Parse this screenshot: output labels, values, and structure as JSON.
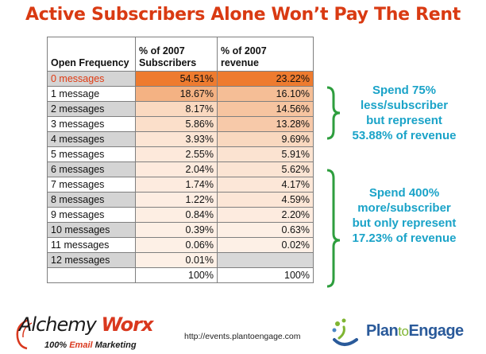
{
  "title": "Active Subscribers Alone Won’t Pay The Rent",
  "chart_data": {
    "type": "table",
    "title": "Active Subscribers Alone Won’t Pay The Rent",
    "columns": [
      "Open Frequency",
      "% of 2007 Subscribers",
      "% of 2007 revenue"
    ],
    "header": {
      "c0_line1": "",
      "c0_line2": "Open Frequency",
      "c1_line1": "% of 2007",
      "c1_line2": "Subscribers",
      "c2_line1": "% of 2007",
      "c2_line2": "revenue"
    },
    "rows": [
      {
        "label": "0 messages",
        "subscribers": "54.51%",
        "revenue": "23.22%",
        "sub_color": "#ee7b2f",
        "rev_color": "#ee7b2f"
      },
      {
        "label": "1 message",
        "subscribers": "18.67%",
        "revenue": "16.10%",
        "sub_color": "#f4b283",
        "rev_color": "#f5be96"
      },
      {
        "label": "2 messages",
        "subscribers": "8.17%",
        "revenue": "14.56%",
        "sub_color": "#fad9c0",
        "rev_color": "#f6c4a0"
      },
      {
        "label": "3 messages",
        "subscribers": "5.86%",
        "revenue": "13.28%",
        "sub_color": "#fbdfca",
        "rev_color": "#f7c9a9"
      },
      {
        "label": "4 messages",
        "subscribers": "3.93%",
        "revenue": "9.69%",
        "sub_color": "#fce5d4",
        "rev_color": "#f9d8bf"
      },
      {
        "label": "5 messages",
        "subscribers": "2.55%",
        "revenue": "5.91%",
        "sub_color": "#fde9db",
        "rev_color": "#fbe3d1"
      },
      {
        "label": "6 messages",
        "subscribers": "2.04%",
        "revenue": "5.62%",
        "sub_color": "#fdeadd",
        "rev_color": "#fbe4d3"
      },
      {
        "label": "7 messages",
        "subscribers": "1.74%",
        "revenue": "4.17%",
        "sub_color": "#fdebdf",
        "rev_color": "#fce7d8"
      },
      {
        "label": "8 messages",
        "subscribers": "1.22%",
        "revenue": "4.59%",
        "sub_color": "#fdede2",
        "rev_color": "#fce6d6"
      },
      {
        "label": "9 messages",
        "subscribers": "0.84%",
        "revenue": "2.20%",
        "sub_color": "#fdeee3",
        "rev_color": "#fdebdf"
      },
      {
        "label": "10 messages",
        "subscribers": "0.39%",
        "revenue": "0.63%",
        "sub_color": "#fdefe5",
        "rev_color": "#fdefe5"
      },
      {
        "label": "11 messages",
        "subscribers": "0.06%",
        "revenue": "0.02%",
        "sub_color": "#fdf0e6",
        "rev_color": "#fdf0e6"
      },
      {
        "label": "12 messages",
        "subscribers": "0.01%",
        "revenue": "",
        "sub_color": "#fdf0e6",
        "rev_color": "#d8d8d8"
      }
    ],
    "totals": {
      "label": "",
      "subscribers": "100%",
      "revenue": "100%"
    }
  },
  "annotations": [
    {
      "lines": [
        "Spend 75%",
        "less/subscriber",
        "but represent",
        "53.88% of revenue"
      ]
    },
    {
      "lines": [
        "Spend 400%",
        "more/subscriber",
        "but only represent",
        "17.23% of revenue"
      ]
    }
  ],
  "footer": {
    "alchemy_brand_1": "Alchemy",
    "alchemy_brand_2": "Worx",
    "alchemy_tagline_1": "100%",
    "alchemy_tagline_2": "Email",
    "alchemy_tagline_3": "Marketing",
    "url": "http://events.plantoengage.com",
    "pte_1": "Plan",
    "pte_2": "to",
    "pte_3": "Engage"
  },
  "colors": {
    "title": "#d93a12",
    "annotation": "#1aa3c8",
    "bracket": "#2e9e3e"
  }
}
